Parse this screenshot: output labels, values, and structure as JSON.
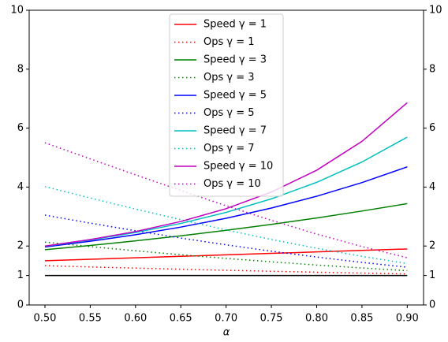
{
  "chart_data": {
    "type": "line",
    "x_label": "α",
    "x": [
      0.5,
      0.55,
      0.6,
      0.65,
      0.7,
      0.75,
      0.8,
      0.85,
      0.9
    ],
    "xlim": [
      0.4826,
      0.918
    ],
    "xticks": [
      {
        "value": 0.5,
        "label": "0.50"
      },
      0.55,
      {
        "value": 0.6,
        "label": "0.60"
      },
      0.65,
      {
        "value": 0.7,
        "label": "0.70"
      },
      0.75,
      {
        "value": 0.8,
        "label": "0.80"
      },
      0.85,
      {
        "value": 0.9,
        "label": "0.90"
      }
    ],
    "ylim": [
      0,
      10
    ],
    "yticks": [
      0,
      1,
      2,
      4,
      6,
      8,
      10
    ],
    "y2lim": [
      0,
      10
    ],
    "y2ticks": [
      0,
      1,
      2,
      4,
      6,
      8,
      10
    ],
    "legend_loc": "upper center",
    "hlines": [
      {
        "value": 1,
        "color": "#000000"
      }
    ],
    "series": [
      {
        "name": "Speed γ = 1",
        "color": "#ff0000",
        "style": "solid",
        "values": [
          1.5,
          1.55,
          1.6,
          1.65,
          1.7,
          1.75,
          1.8,
          1.85,
          1.9
        ]
      },
      {
        "name": "Ops γ = 1",
        "color": "#ff0000",
        "style": "dotted",
        "values": [
          1.333,
          1.29,
          1.25,
          1.212,
          1.176,
          1.143,
          1.111,
          1.081,
          1.053
        ]
      },
      {
        "name": "Speed γ = 3",
        "color": "#008000",
        "style": "solid",
        "values": [
          1.875,
          2.019,
          2.176,
          2.347,
          2.533,
          2.734,
          2.952,
          3.187,
          3.439
        ]
      },
      {
        "name": "Ops γ = 3",
        "color": "#008000",
        "style": "dotted",
        "values": [
          2.133,
          1.981,
          1.838,
          1.704,
          1.579,
          1.463,
          1.355,
          1.255,
          1.163
        ]
      },
      {
        "name": "Speed γ = 5",
        "color": "#0000ff",
        "style": "solid",
        "values": [
          1.969,
          2.161,
          2.383,
          2.642,
          2.941,
          3.288,
          3.689,
          4.152,
          4.686
        ]
      },
      {
        "name": "Ops γ = 5",
        "color": "#0000ff",
        "style": "dotted",
        "values": [
          3.048,
          2.777,
          2.518,
          2.271,
          2.04,
          1.825,
          1.626,
          1.445,
          1.28
        ]
      },
      {
        "name": "Speed γ = 7",
        "color": "#00bfbf",
        "style": "solid",
        "values": [
          1.992,
          2.204,
          2.458,
          2.766,
          3.141,
          3.6,
          4.161,
          4.85,
          5.695
        ]
      },
      {
        "name": "Ops γ = 7",
        "color": "#00bfbf",
        "style": "dotted",
        "values": [
          4.016,
          3.63,
          3.255,
          2.892,
          2.547,
          2.222,
          1.923,
          1.649,
          1.405
        ]
      },
      {
        "name": "Speed γ = 10",
        "color": "#bf00bf",
        "style": "solid",
        "values": [
          1.999,
          2.219,
          2.491,
          2.832,
          3.267,
          3.831,
          4.571,
          5.551,
          6.862
        ]
      },
      {
        "name": "Ops γ = 10",
        "color": "#bf00bf",
        "style": "dotted",
        "values": [
          5.503,
          4.957,
          4.416,
          3.884,
          3.367,
          2.871,
          2.406,
          1.982,
          1.603
        ]
      }
    ]
  }
}
